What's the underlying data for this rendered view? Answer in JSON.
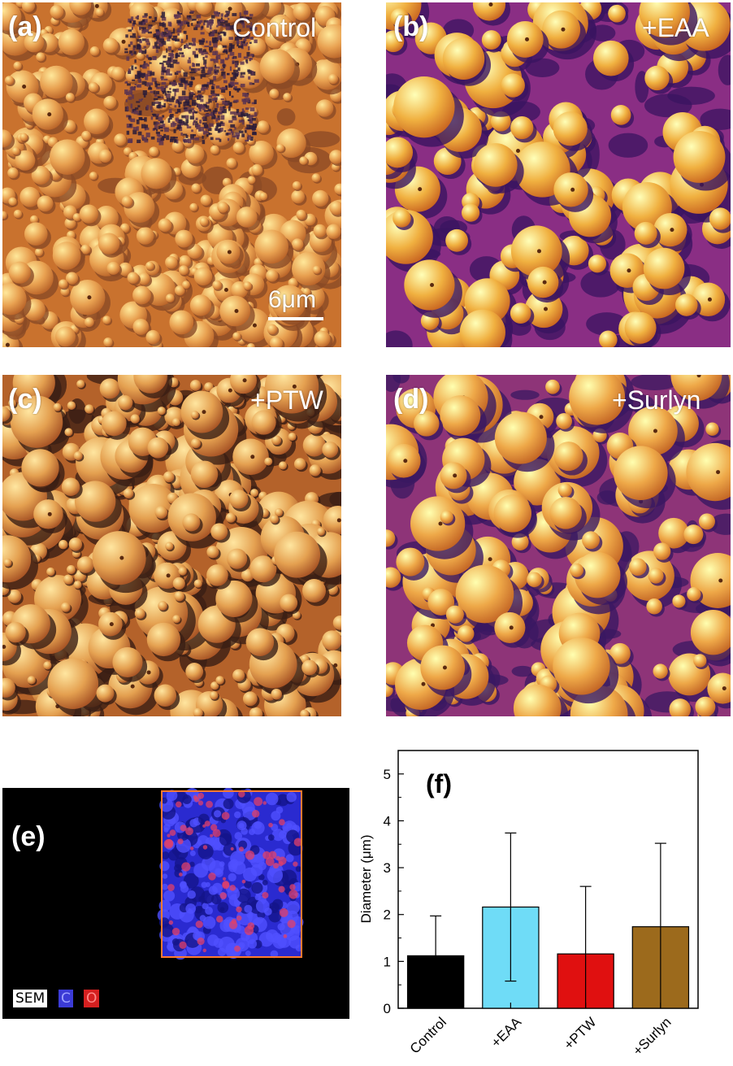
{
  "panels": {
    "a": {
      "label": "(a)",
      "title": "Control",
      "scale_bar": "6μm"
    },
    "b": {
      "label": "(b)",
      "title": "+EAA"
    },
    "c": {
      "label": "(c)",
      "title": "+PTW"
    },
    "d": {
      "label": "(d)",
      "title": "+Surlyn"
    },
    "e": {
      "label": "(e)",
      "legend": [
        {
          "text": "SEM",
          "color": "#ffffff"
        },
        {
          "text": "C",
          "color": "#3b3bd6"
        },
        {
          "text": "O",
          "color": "#d62020"
        }
      ]
    },
    "f": {
      "label": "(f)"
    }
  },
  "chart_data": {
    "type": "bar",
    "categories": [
      "Control",
      "+EAA",
      "+PTW",
      "+Surlyn"
    ],
    "values": [
      1.12,
      2.16,
      1.16,
      1.74
    ],
    "error": [
      0.85,
      1.58,
      1.44,
      1.78
    ],
    "colors": [
      "#000000",
      "#6fdcf7",
      "#e01010",
      "#9c6a1c"
    ],
    "ylabel": "Diameter (μm)",
    "ylim": [
      0,
      5.5
    ],
    "yticks": [
      "0",
      "1",
      "2",
      "3",
      "4",
      "5"
    ],
    "legend": "none",
    "grid": false
  }
}
